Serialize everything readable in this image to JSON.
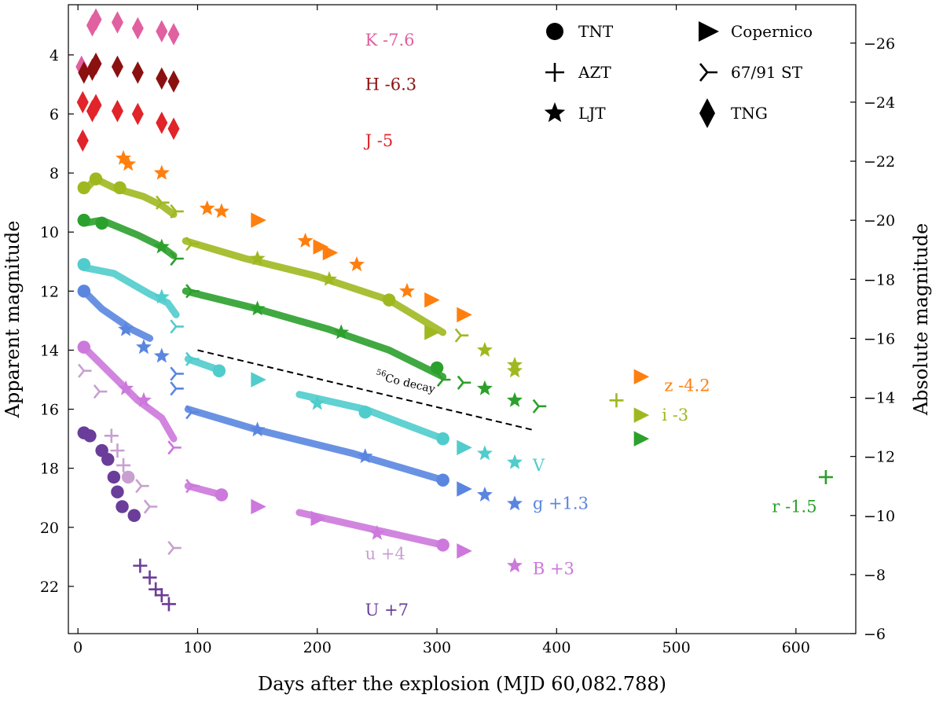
{
  "chart_data": {
    "type": "scatter",
    "xlabel": "Days after the explosion (MJD 60,082.788)",
    "ylabel": "Apparent magnitude",
    "y2label": "Absolute magnitude",
    "xlim": [
      -8,
      650
    ],
    "ylim": [
      23.6,
      2.3
    ],
    "x_ticks": [
      0,
      100,
      200,
      300,
      400,
      500,
      600
    ],
    "y_ticks": [
      4,
      6,
      8,
      10,
      12,
      14,
      16,
      18,
      20,
      22
    ],
    "y2_ticks": [
      -26,
      -24,
      -22,
      -20,
      -18,
      -16,
      -14,
      -12,
      -10,
      -8,
      -6
    ],
    "y2_offset": -29.6,
    "legend": [
      {
        "name": "TNT",
        "marker": "circle"
      },
      {
        "name": "AZT",
        "marker": "plus"
      },
      {
        "name": "LJT",
        "marker": "star"
      },
      {
        "name": "Copernico",
        "marker": "triangle-right"
      },
      {
        "name": "67/91 ST",
        "marker": "tri-left"
      },
      {
        "name": "TNG",
        "marker": "diamond"
      }
    ],
    "annotation": {
      "text_sup": "56",
      "text": "Co decay",
      "x0": 100,
      "y0": 14.0,
      "x1": 380,
      "y1": 16.7
    },
    "series": [
      {
        "band": "K",
        "label": "K -7.6",
        "color": "#e060a0",
        "label_x": 240,
        "label_y": 3.5,
        "points": [
          [
            3,
            4.4,
            "diamond"
          ],
          [
            12,
            3.0,
            "diamond"
          ],
          [
            15,
            2.8,
            "diamond"
          ],
          [
            33,
            2.9,
            "diamond"
          ],
          [
            50,
            3.1,
            "diamond"
          ],
          [
            70,
            3.2,
            "diamond"
          ],
          [
            80,
            3.3,
            "diamond"
          ]
        ]
      },
      {
        "band": "H",
        "label": "H -6.3",
        "color": "#8b1010",
        "label_x": 240,
        "label_y": 5.0,
        "points": [
          [
            5,
            4.6,
            "diamond"
          ],
          [
            12,
            4.5,
            "diamond"
          ],
          [
            15,
            4.3,
            "diamond"
          ],
          [
            33,
            4.4,
            "diamond"
          ],
          [
            50,
            4.6,
            "diamond"
          ],
          [
            70,
            4.8,
            "diamond"
          ],
          [
            80,
            4.9,
            "diamond"
          ]
        ]
      },
      {
        "band": "J",
        "label": "J -5",
        "color": "#e0242a",
        "label_x": 240,
        "label_y": 6.9,
        "points": [
          [
            4,
            5.6,
            "diamond"
          ],
          [
            4,
            6.9,
            "diamond"
          ],
          [
            12,
            5.9,
            "diamond"
          ],
          [
            15,
            5.7,
            "diamond"
          ],
          [
            33,
            5.9,
            "diamond"
          ],
          [
            50,
            6.0,
            "diamond"
          ],
          [
            70,
            6.3,
            "diamond"
          ],
          [
            80,
            6.5,
            "diamond"
          ]
        ]
      },
      {
        "band": "z",
        "label": "z -4.2",
        "color": "#ff7f0e",
        "label_x": 490,
        "label_y": 15.2,
        "points": [
          [
            38,
            7.5,
            "star"
          ],
          [
            42,
            7.7,
            "star"
          ],
          [
            70,
            8.0,
            "star"
          ],
          [
            108,
            9.2,
            "star"
          ],
          [
            120,
            9.3,
            "star"
          ],
          [
            150,
            9.6,
            "triangle"
          ],
          [
            190,
            10.3,
            "star"
          ],
          [
            202,
            10.5,
            "triangle"
          ],
          [
            210,
            10.7,
            "triangle"
          ],
          [
            233,
            11.1,
            "star"
          ],
          [
            275,
            12.0,
            "star"
          ],
          [
            295,
            12.3,
            "triangle"
          ],
          [
            322,
            12.8,
            "triangle"
          ],
          [
            470,
            14.9,
            "triangle"
          ]
        ]
      },
      {
        "band": "i",
        "label": "i -3",
        "color": "#a0b820",
        "label_x": 488,
        "label_y": 16.2,
        "line": [
          [
            5,
            8.6
          ],
          [
            15,
            8.2
          ],
          [
            30,
            8.5
          ],
          [
            55,
            8.8
          ],
          [
            70,
            9.1
          ],
          [
            80,
            9.4
          ]
        ],
        "line2": [
          [
            90,
            10.3
          ],
          [
            140,
            10.9
          ],
          [
            200,
            11.5
          ],
          [
            260,
            12.3
          ],
          [
            305,
            13.4
          ]
        ],
        "points": [
          [
            5,
            8.5,
            "circle"
          ],
          [
            15,
            8.2,
            "circle"
          ],
          [
            35,
            8.5,
            "circle"
          ],
          [
            70,
            9.0,
            "tri"
          ],
          [
            82,
            9.3,
            "tri"
          ],
          [
            95,
            10.4,
            "tri"
          ],
          [
            150,
            10.9,
            "star"
          ],
          [
            210,
            11.6,
            "star"
          ],
          [
            260,
            12.3,
            "circle"
          ],
          [
            295,
            13.4,
            "triangle"
          ],
          [
            320,
            13.5,
            "tri"
          ],
          [
            340,
            14.0,
            "star"
          ],
          [
            365,
            14.5,
            "star"
          ],
          [
            365,
            14.7,
            "star"
          ],
          [
            450,
            15.7,
            "plus"
          ],
          [
            470,
            16.2,
            "triangle"
          ]
        ]
      },
      {
        "band": "r",
        "label": "r -1.5",
        "color": "#2ca02c",
        "label_x": 580,
        "label_y": 19.3,
        "line": [
          [
            5,
            9.7
          ],
          [
            20,
            9.6
          ],
          [
            50,
            10.1
          ],
          [
            70,
            10.5
          ],
          [
            80,
            10.8
          ]
        ],
        "line2": [
          [
            90,
            12.0
          ],
          [
            150,
            12.6
          ],
          [
            210,
            13.3
          ],
          [
            260,
            14.0
          ],
          [
            305,
            14.9
          ]
        ],
        "points": [
          [
            5,
            9.6,
            "circle"
          ],
          [
            20,
            9.7,
            "circle"
          ],
          [
            70,
            10.5,
            "star"
          ],
          [
            82,
            10.9,
            "tri"
          ],
          [
            95,
            12.0,
            "tri"
          ],
          [
            150,
            12.6,
            "star"
          ],
          [
            220,
            13.4,
            "star"
          ],
          [
            300,
            14.6,
            "circle"
          ],
          [
            305,
            15.0,
            "tri"
          ],
          [
            322,
            15.1,
            "tri"
          ],
          [
            340,
            15.3,
            "star"
          ],
          [
            365,
            15.7,
            "star"
          ],
          [
            385,
            15.9,
            "tri"
          ],
          [
            470,
            17.0,
            "triangle"
          ],
          [
            625,
            18.3,
            "plus"
          ]
        ]
      },
      {
        "band": "V",
        "label": "V",
        "color": "#50cccc",
        "label_x": 380,
        "label_y": 17.9,
        "line": [
          [
            5,
            11.2
          ],
          [
            30,
            11.4
          ],
          [
            60,
            12.1
          ],
          [
            75,
            12.4
          ],
          [
            82,
            12.8
          ]
        ],
        "line2": [
          [
            92,
            14.3
          ],
          [
            120,
            14.7
          ]
        ],
        "line3": [
          [
            185,
            15.5
          ],
          [
            240,
            16.0
          ],
          [
            305,
            17.0
          ]
        ],
        "points": [
          [
            5,
            11.1,
            "circle"
          ],
          [
            70,
            12.2,
            "star"
          ],
          [
            82,
            13.2,
            "tri"
          ],
          [
            95,
            14.3,
            "tri"
          ],
          [
            118,
            14.7,
            "circle"
          ],
          [
            150,
            15.0,
            "triangle"
          ],
          [
            200,
            15.8,
            "star"
          ],
          [
            240,
            16.1,
            "circle"
          ],
          [
            305,
            17.0,
            "circle"
          ],
          [
            322,
            17.3,
            "triangle"
          ],
          [
            340,
            17.5,
            "star"
          ],
          [
            365,
            17.8,
            "star"
          ]
        ]
      },
      {
        "band": "g",
        "label": "g +1.3",
        "color": "#5a86e0",
        "label_x": 380,
        "label_y": 19.2,
        "line": [
          [
            5,
            12.0
          ],
          [
            20,
            12.6
          ],
          [
            45,
            13.3
          ],
          [
            60,
            13.6
          ]
        ],
        "line2": [
          [
            92,
            16.0
          ],
          [
            150,
            16.7
          ],
          [
            230,
            17.5
          ],
          [
            305,
            18.4
          ]
        ],
        "points": [
          [
            5,
            12.0,
            "circle"
          ],
          [
            40,
            13.3,
            "star"
          ],
          [
            55,
            13.9,
            "star"
          ],
          [
            70,
            14.2,
            "star"
          ],
          [
            82,
            14.8,
            "tri"
          ],
          [
            82,
            15.3,
            "tri"
          ],
          [
            95,
            16.1,
            "tri"
          ],
          [
            150,
            16.7,
            "star"
          ],
          [
            240,
            17.6,
            "star"
          ],
          [
            305,
            18.4,
            "circle"
          ],
          [
            322,
            18.7,
            "triangle"
          ],
          [
            340,
            18.9,
            "star"
          ],
          [
            365,
            19.2,
            "star"
          ]
        ]
      },
      {
        "band": "B",
        "label": "B +3",
        "color": "#cc78dc",
        "label_x": 380,
        "label_y": 21.4,
        "line": [
          [
            5,
            13.9
          ],
          [
            20,
            14.5
          ],
          [
            50,
            15.7
          ],
          [
            70,
            16.3
          ],
          [
            80,
            17.0
          ]
        ],
        "line2": [
          [
            92,
            18.6
          ],
          [
            120,
            18.9
          ]
        ],
        "line3": [
          [
            185,
            19.5
          ],
          [
            250,
            20.1
          ],
          [
            305,
            20.6
          ]
        ],
        "points": [
          [
            5,
            13.9,
            "circle"
          ],
          [
            40,
            15.3,
            "star"
          ],
          [
            55,
            15.7,
            "star"
          ],
          [
            80,
            17.3,
            "tri"
          ],
          [
            95,
            18.6,
            "tri"
          ],
          [
            120,
            18.9,
            "circle"
          ],
          [
            150,
            19.3,
            "triangle"
          ],
          [
            200,
            19.7,
            "triangle"
          ],
          [
            250,
            20.2,
            "star"
          ],
          [
            305,
            20.6,
            "circle"
          ],
          [
            322,
            20.8,
            "triangle"
          ],
          [
            365,
            21.3,
            "star"
          ]
        ]
      },
      {
        "band": "u",
        "label": "u +4",
        "color": "#c8a0d0",
        "label_x": 240,
        "label_y": 20.9,
        "points": [
          [
            5,
            14.7,
            "tri"
          ],
          [
            18,
            15.4,
            "tri"
          ],
          [
            28,
            16.9,
            "plus"
          ],
          [
            33,
            17.4,
            "plus"
          ],
          [
            38,
            17.9,
            "plus"
          ],
          [
            42,
            18.3,
            "circle"
          ],
          [
            53,
            18.6,
            "tri"
          ],
          [
            60,
            19.3,
            "tri"
          ],
          [
            80,
            20.7,
            "tri"
          ]
        ]
      },
      {
        "band": "U",
        "label": "U +7",
        "color": "#6a3d9a",
        "label_x": 240,
        "label_y": 22.8,
        "points": [
          [
            5,
            16.8,
            "circle"
          ],
          [
            10,
            16.9,
            "circle"
          ],
          [
            20,
            17.4,
            "circle"
          ],
          [
            25,
            17.7,
            "circle"
          ],
          [
            30,
            18.3,
            "circle"
          ],
          [
            33,
            18.8,
            "circle"
          ],
          [
            37,
            19.3,
            "circle"
          ],
          [
            47,
            19.6,
            "circle"
          ],
          [
            52,
            21.3,
            "plus"
          ],
          [
            60,
            21.7,
            "plus"
          ],
          [
            65,
            22.1,
            "plus"
          ],
          [
            70,
            22.3,
            "plus"
          ],
          [
            76,
            22.6,
            "plus"
          ]
        ]
      }
    ]
  }
}
